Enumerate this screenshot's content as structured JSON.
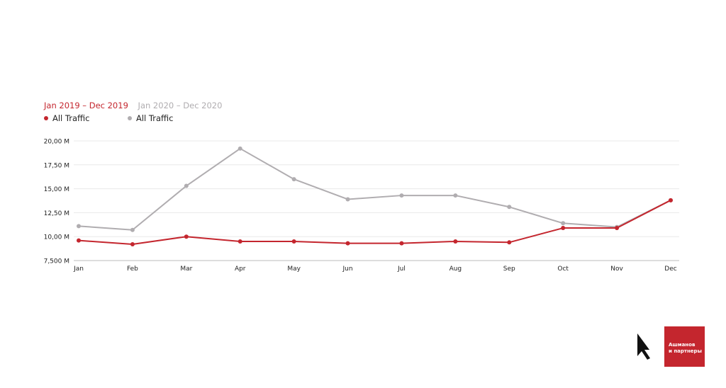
{
  "legend": {
    "period_2019": "Jan 2019 – Dec 2019",
    "period_2020": "Jan 2020 – Dec 2020",
    "series_2019": "All Traffic",
    "series_2020": "All Traffic"
  },
  "colors": {
    "series_2019": "#c4262e",
    "series_2020": "#b0adb0",
    "grid": "#e8e8e8",
    "axis": "#bbbbbb"
  },
  "brand": {
    "line1": "Ашманов",
    "line2": "и партнеры",
    "logo_icon": "cursor-a-logo-icon"
  },
  "chart_data": {
    "type": "line",
    "categories": [
      "Jan",
      "Feb",
      "Mar",
      "Apr",
      "May",
      "Jun",
      "Jul",
      "Aug",
      "Sep",
      "Oct",
      "Nov",
      "Dec"
    ],
    "y_ticks": [
      "20,00 M",
      "17,50 M",
      "15,00 M",
      "12,50 M",
      "10,00 M",
      "7,500 M"
    ],
    "ylim": [
      7.5,
      20
    ],
    "grid": true,
    "legend_position": "top-left",
    "series": [
      {
        "name": "All Traffic",
        "period": "Jan 2019 – Dec 2019",
        "values": [
          9.6,
          9.2,
          10.0,
          9.5,
          9.5,
          9.3,
          9.3,
          9.5,
          9.4,
          10.9,
          10.9,
          13.8
        ]
      },
      {
        "name": "All Traffic",
        "period": "Jan 2020 – Dec 2020",
        "values": [
          11.1,
          10.7,
          15.3,
          19.2,
          16.0,
          13.9,
          14.3,
          14.3,
          13.1,
          11.4,
          11.0,
          13.8
        ]
      }
    ]
  }
}
